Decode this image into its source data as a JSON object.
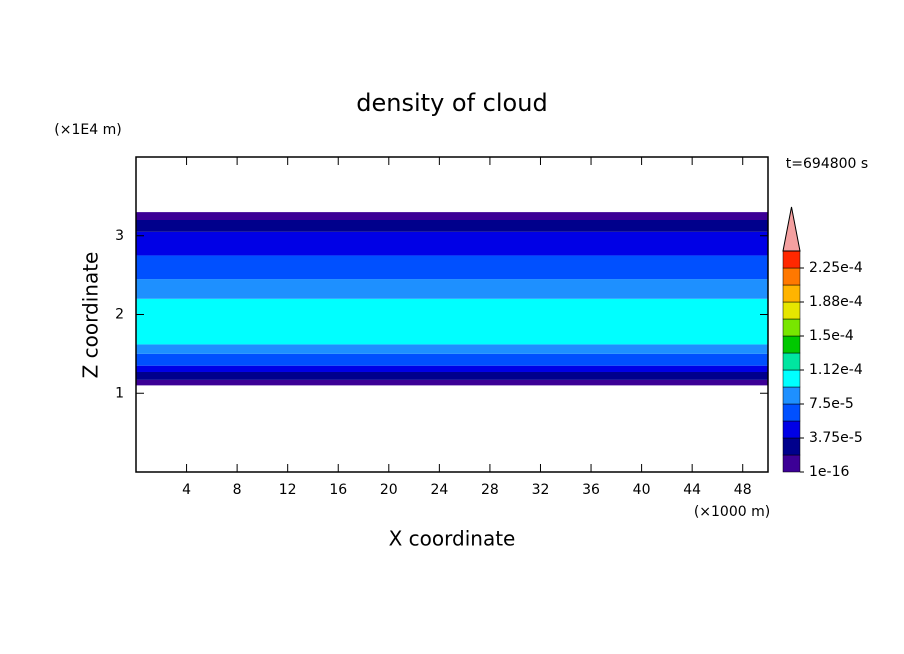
{
  "chart_data": {
    "type": "contour",
    "title": "density of cloud",
    "x_label": "X coordinate",
    "x_unit": "(×1000 m)",
    "y_label": "Z coordinate",
    "y_unit": "(×1E4 m)",
    "annotation": "t=694800 s",
    "xlim": [
      0,
      50
    ],
    "xticks": [
      4,
      8,
      12,
      16,
      20,
      24,
      28,
      32,
      36,
      40,
      44,
      48
    ],
    "ylim": [
      0,
      4
    ],
    "yticks": [
      1,
      2,
      3
    ],
    "field": {
      "x": [
        0,
        50
      ],
      "layers": [
        {
          "z": [
            1.1,
            1.17
          ],
          "value": 1e-05
        },
        {
          "z": [
            1.17,
            1.27
          ],
          "value": 2.8e-05
        },
        {
          "z": [
            1.27,
            1.35
          ],
          "value": 4.5e-05
        },
        {
          "z": [
            1.35,
            1.5
          ],
          "value": 6.5e-05
        },
        {
          "z": [
            1.5,
            1.62
          ],
          "value": 8.5e-05
        },
        {
          "z": [
            1.62,
            2.2
          ],
          "value": 0.0001
        },
        {
          "z": [
            2.2,
            2.45
          ],
          "value": 8.5e-05
        },
        {
          "z": [
            2.45,
            2.75
          ],
          "value": 6.5e-05
        },
        {
          "z": [
            2.75,
            3.05
          ],
          "value": 4.5e-05
        },
        {
          "z": [
            3.05,
            3.2
          ],
          "value": 2.8e-05
        },
        {
          "z": [
            3.2,
            3.3
          ],
          "value": 1e-05
        }
      ]
    },
    "colorbar": {
      "levels": [
        1e-16,
        1.875e-05,
        3.75e-05,
        5.625e-05,
        7.5e-05,
        9.375e-05,
        0.0001125,
        0.00013125,
        0.00015,
        0.00016875,
        0.0001875,
        0.00020625,
        0.000225,
        0.00024375
      ],
      "colors": [
        "#3c0096",
        "#00008c",
        "#0000e6",
        "#0050ff",
        "#1e90ff",
        "#00ffff",
        "#00e6a0",
        "#00c800",
        "#78e600",
        "#e6e600",
        "#ffb400",
        "#ff7800",
        "#ff2800"
      ],
      "extend_color": "#f4a0a0",
      "ticks": [
        {
          "value": 1e-16,
          "label": "1e-16"
        },
        {
          "value": 3.75e-05,
          "label": "3.75e-5"
        },
        {
          "value": 7.5e-05,
          "label": "7.5e-5"
        },
        {
          "value": 0.0001125,
          "label": "1.12e-4"
        },
        {
          "value": 0.00015,
          "label": "1.5e-4"
        },
        {
          "value": 0.0001875,
          "label": "1.88e-4"
        },
        {
          "value": 0.000225,
          "label": "2.25e-4"
        }
      ]
    }
  }
}
